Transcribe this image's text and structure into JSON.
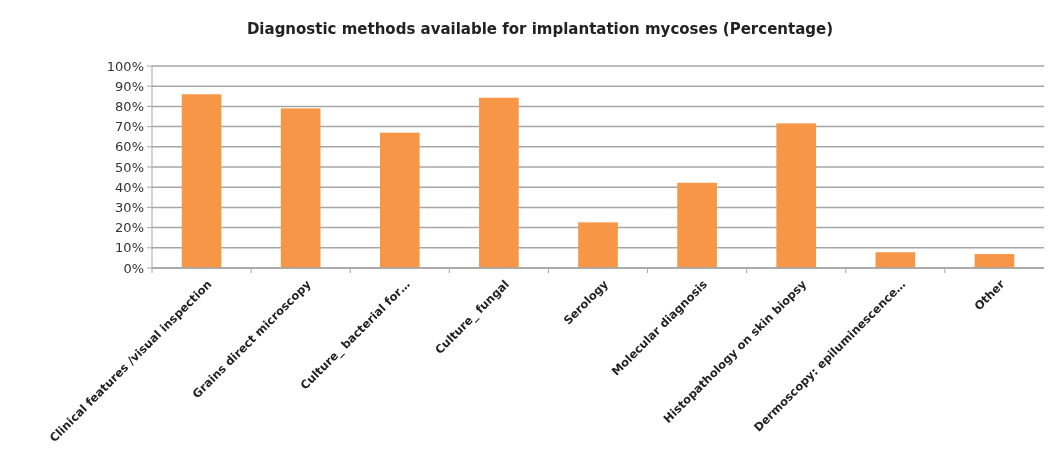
{
  "chart_data": {
    "type": "bar",
    "title": "Diagnostic methods available for implantation mycoses (Percentage)",
    "categories": [
      "Clinical features /visual inspection",
      "Grains direct microscopy",
      "Culture_ bacterial for…",
      "Culture_ fungal",
      "Serology",
      "Molecular diagnosis",
      "Histopathology on skin biopsy",
      "Dermoscopy: epiluminescence…",
      "Other"
    ],
    "values": [
      86,
      79,
      67,
      84.3,
      22.6,
      42.2,
      71.6,
      7.8,
      6.9
    ],
    "color": "#f79646",
    "ylim": [
      0,
      100
    ],
    "yticks": [
      {
        "value": 0,
        "label": "0%"
      },
      {
        "value": 10,
        "label": "10%"
      },
      {
        "value": 20,
        "label": "20%"
      },
      {
        "value": 30,
        "label": "30%"
      },
      {
        "value": 40,
        "label": "40%"
      },
      {
        "value": 50,
        "label": "50%"
      },
      {
        "value": 60,
        "label": "60%"
      },
      {
        "value": 70,
        "label": "70%"
      },
      {
        "value": 80,
        "label": "80%"
      },
      {
        "value": 90,
        "label": "90%"
      },
      {
        "value": 100,
        "label": "100%"
      }
    ],
    "grid": "y"
  }
}
